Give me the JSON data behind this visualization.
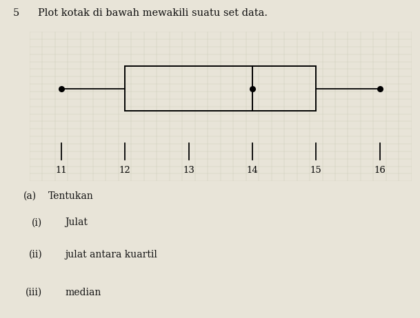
{
  "title_num": "5",
  "title_text": "Plot kotak di bawah mewakili suatu set data.",
  "min_val": 11,
  "q1": 12,
  "median": 14,
  "q3": 15,
  "max_val": 16,
  "axis_min": 10.5,
  "axis_max": 16.5,
  "tick_positions": [
    11,
    12,
    13,
    14,
    15,
    16
  ],
  "grid_color": "#bbbbaa",
  "grid_color_minor": "#ccccbb",
  "box_color": "#000000",
  "background_color": "#dedad0",
  "page_color": "#e8e4d8",
  "q_labels": [
    "(a)",
    "(i)",
    "(ii)",
    "(iii)"
  ],
  "q_texts": [
    "Tentukan",
    "Julat",
    "julat antara kuartil",
    "median"
  ]
}
